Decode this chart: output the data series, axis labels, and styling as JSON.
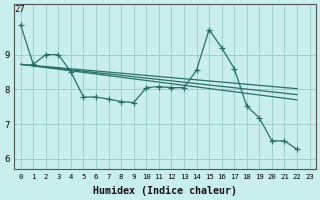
{
  "bg_color": "#c8eeed",
  "grid_color": "#a0d0ce",
  "line_color": "#2a7068",
  "xlabel": "Humidex (Indice chaleur)",
  "xlim": [
    -0.5,
    23.5
  ],
  "ylim": [
    5.7,
    10.45
  ],
  "yticks": [
    6,
    7,
    8,
    9
  ],
  "xticks": [
    0,
    1,
    2,
    3,
    4,
    5,
    6,
    7,
    8,
    9,
    10,
    11,
    12,
    13,
    14,
    15,
    16,
    17,
    18,
    19,
    20,
    21,
    22,
    23
  ],
  "top_label": "27",
  "zigzag_x": [
    0,
    1,
    2,
    3,
    4,
    5,
    6,
    7,
    8,
    9,
    10,
    11,
    12,
    13,
    14,
    15,
    16,
    17,
    18,
    19,
    20,
    21,
    22
  ],
  "zigzag_y": [
    9.85,
    8.72,
    9.0,
    9.0,
    8.5,
    7.78,
    7.78,
    7.72,
    7.65,
    7.62,
    8.05,
    8.08,
    8.05,
    8.05,
    8.55,
    9.72,
    9.2,
    8.6,
    7.52,
    7.18,
    6.52,
    6.52,
    6.28
  ],
  "trend1_x": [
    0,
    22
  ],
  "trend1_y": [
    8.72,
    8.02
  ],
  "trend2_x": [
    0,
    22
  ],
  "trend2_y": [
    8.72,
    7.85
  ],
  "trend3_x": [
    0,
    22
  ],
  "trend3_y": [
    8.72,
    7.7
  ],
  "spine_color": "#555555"
}
